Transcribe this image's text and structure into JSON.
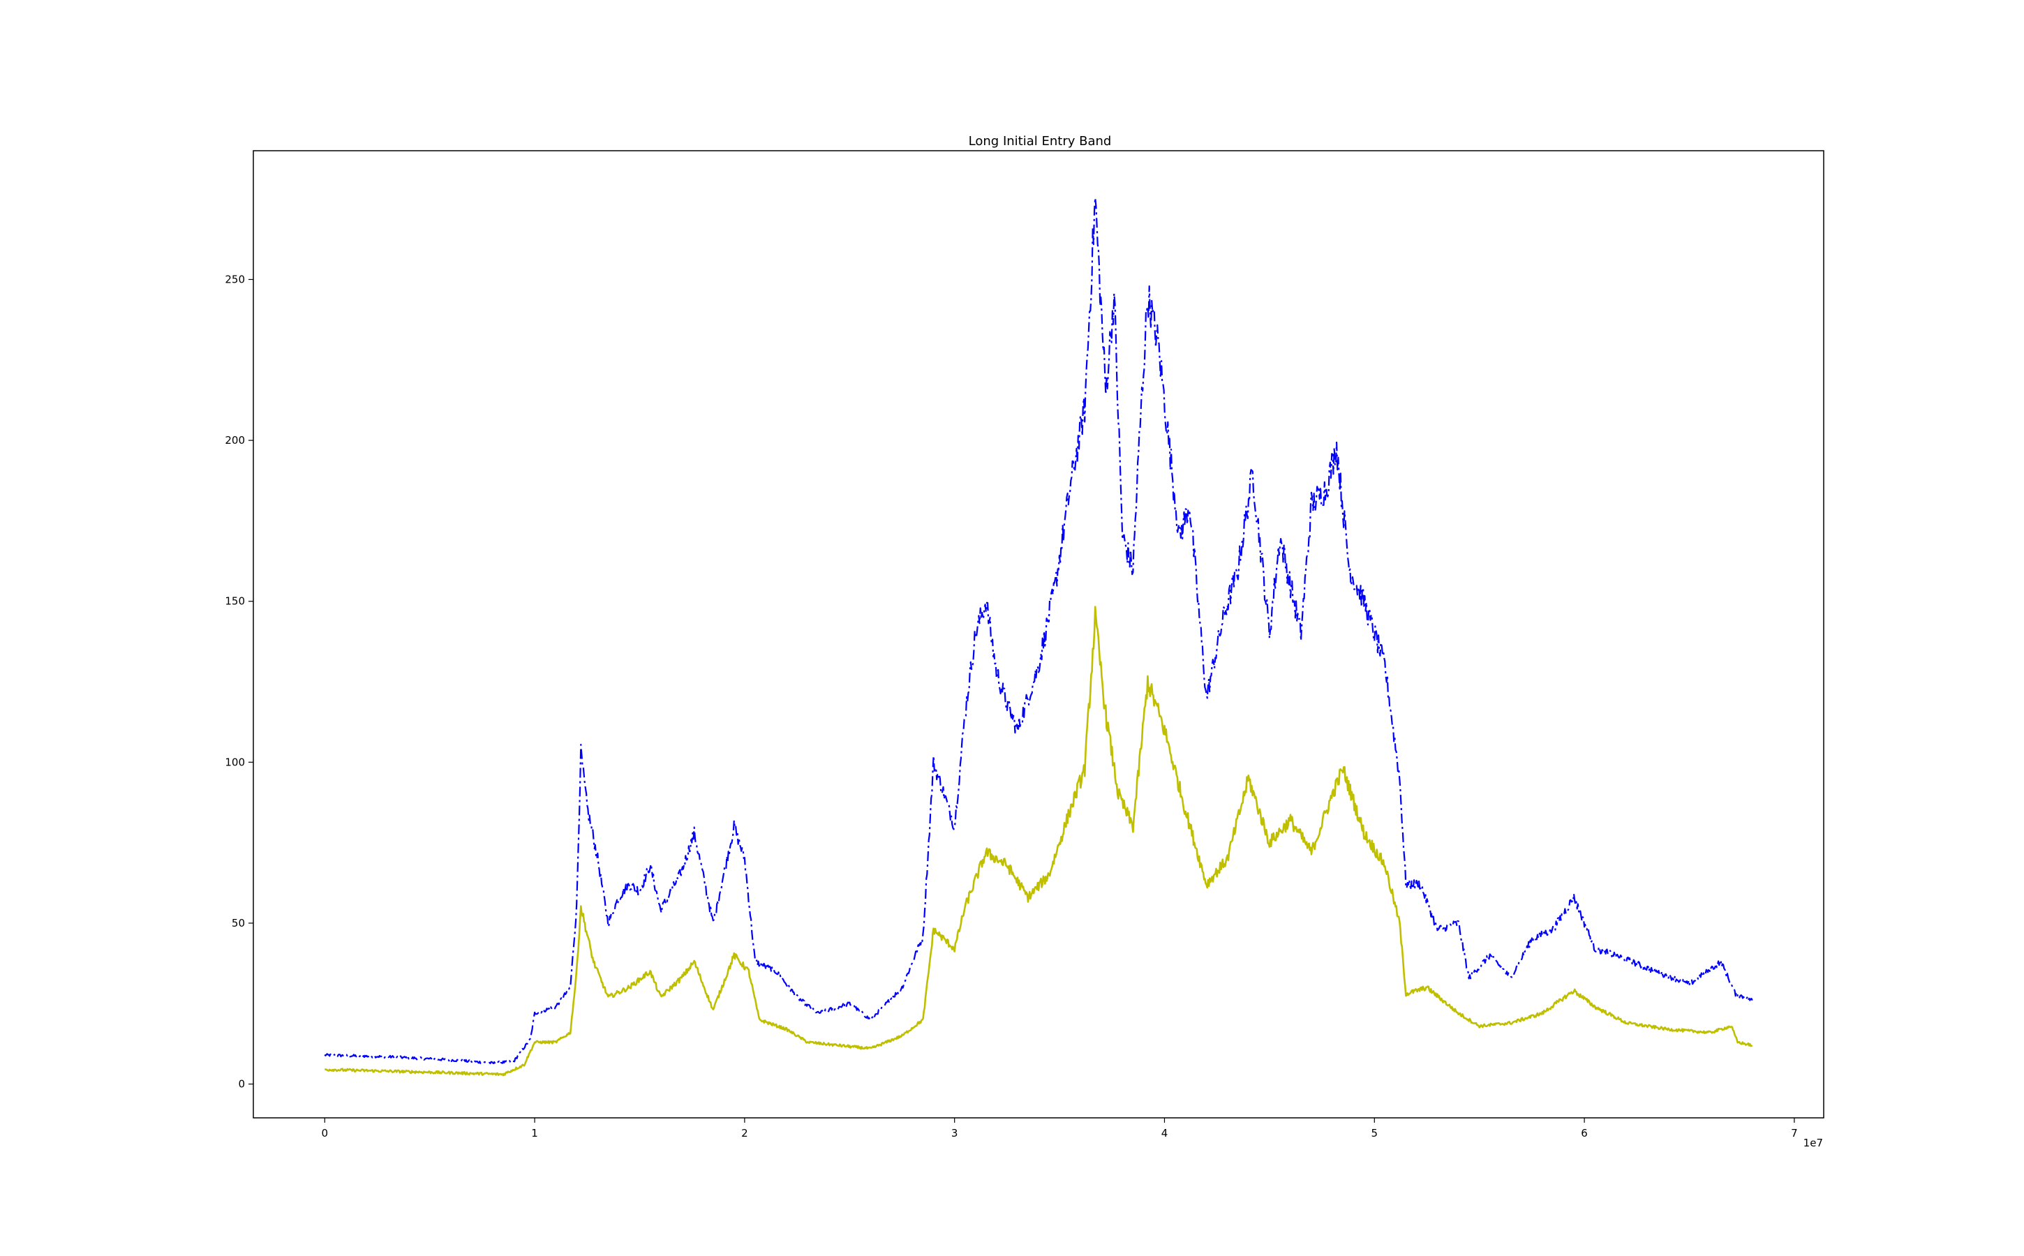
{
  "chart_data": {
    "type": "line",
    "title": "Long Initial Entry Band",
    "xlabel": "",
    "ylabel": "",
    "x_offset_label": "1e7",
    "xlim": [
      -0.34,
      7.14
    ],
    "ylim": [
      -10.5,
      290
    ],
    "xticks": [
      {
        "value": 0,
        "label": "0"
      },
      {
        "value": 1,
        "label": "1"
      },
      {
        "value": 2,
        "label": "2"
      },
      {
        "value": 3,
        "label": "3"
      },
      {
        "value": 4,
        "label": "4"
      },
      {
        "value": 5,
        "label": "5"
      },
      {
        "value": 6,
        "label": "6"
      },
      {
        "value": 7,
        "label": "7"
      }
    ],
    "yticks": [
      {
        "value": 0,
        "label": "0"
      },
      {
        "value": 50,
        "label": "50"
      },
      {
        "value": 100,
        "label": "100"
      },
      {
        "value": 150,
        "label": "150"
      },
      {
        "value": 200,
        "label": "200"
      },
      {
        "value": 250,
        "label": "250"
      }
    ],
    "grid": false,
    "legend": "none",
    "series": [
      {
        "color": "#0000ff",
        "linestyle": "dashdot",
        "points": [
          [
            0.0,
            9.0
          ],
          [
            0.3,
            8.5
          ],
          [
            0.6,
            7.5
          ],
          [
            0.8,
            6.5
          ],
          [
            0.9,
            7.0
          ],
          [
            0.98,
            14.0
          ],
          [
            1.0,
            22.0
          ],
          [
            1.1,
            24.0
          ],
          [
            1.17,
            30.0
          ],
          [
            1.2,
            55.0
          ],
          [
            1.22,
            103.0
          ],
          [
            1.25,
            86.0
          ],
          [
            1.3,
            70.0
          ],
          [
            1.35,
            50.0
          ],
          [
            1.4,
            58.0
          ],
          [
            1.45,
            62.0
          ],
          [
            1.5,
            60.0
          ],
          [
            1.55,
            68.0
          ],
          [
            1.6,
            54.0
          ],
          [
            1.7,
            66.0
          ],
          [
            1.76,
            78.0
          ],
          [
            1.85,
            50.0
          ],
          [
            1.9,
            65.0
          ],
          [
            1.95,
            80.0
          ],
          [
            2.0,
            70.0
          ],
          [
            2.05,
            38.0
          ],
          [
            2.15,
            35.0
          ],
          [
            2.25,
            27.0
          ],
          [
            2.35,
            22.0
          ],
          [
            2.5,
            25.0
          ],
          [
            2.6,
            20.0
          ],
          [
            2.75,
            30.0
          ],
          [
            2.85,
            46.0
          ],
          [
            2.9,
            100.0
          ],
          [
            2.95,
            90.0
          ],
          [
            3.0,
            80.0
          ],
          [
            3.05,
            115.0
          ],
          [
            3.1,
            140.0
          ],
          [
            3.15,
            150.0
          ],
          [
            3.2,
            128.0
          ],
          [
            3.25,
            118.0
          ],
          [
            3.3,
            110.0
          ],
          [
            3.4,
            130.0
          ],
          [
            3.48,
            155.0
          ],
          [
            3.55,
            185.0
          ],
          [
            3.62,
            210.0
          ],
          [
            3.67,
            275.0
          ],
          [
            3.72,
            215.0
          ],
          [
            3.76,
            245.0
          ],
          [
            3.8,
            170.0
          ],
          [
            3.85,
            160.0
          ],
          [
            3.88,
            200.0
          ],
          [
            3.92,
            245.0
          ],
          [
            3.97,
            230.0
          ],
          [
            4.02,
            200.0
          ],
          [
            4.07,
            170.0
          ],
          [
            4.12,
            180.0
          ],
          [
            4.2,
            120.0
          ],
          [
            4.28,
            145.0
          ],
          [
            4.35,
            160.0
          ],
          [
            4.42,
            190.0
          ],
          [
            4.5,
            140.0
          ],
          [
            4.55,
            170.0
          ],
          [
            4.6,
            155.0
          ],
          [
            4.65,
            140.0
          ],
          [
            4.7,
            180.0
          ],
          [
            4.77,
            185.0
          ],
          [
            4.82,
            198.0
          ],
          [
            4.88,
            160.0
          ],
          [
            4.95,
            150.0
          ],
          [
            5.05,
            130.0
          ],
          [
            5.12,
            95.0
          ],
          [
            5.15,
            62.0
          ],
          [
            5.22,
            62.0
          ],
          [
            5.3,
            48.0
          ],
          [
            5.4,
            50.0
          ],
          [
            5.45,
            33.0
          ],
          [
            5.55,
            40.0
          ],
          [
            5.65,
            33.0
          ],
          [
            5.75,
            45.0
          ],
          [
            5.85,
            48.0
          ],
          [
            5.95,
            58.0
          ],
          [
            6.05,
            42.0
          ],
          [
            6.15,
            40.0
          ],
          [
            6.3,
            36.0
          ],
          [
            6.5,
            31.0
          ],
          [
            6.65,
            38.0
          ],
          [
            6.72,
            28.0
          ],
          [
            6.8,
            26.0
          ]
        ]
      },
      {
        "color": "#bfbf00",
        "linestyle": "solid",
        "points": [
          [
            0.0,
            4.5
          ],
          [
            0.3,
            4.0
          ],
          [
            0.6,
            3.5
          ],
          [
            0.85,
            3.0
          ],
          [
            0.95,
            6.0
          ],
          [
            1.0,
            13.0
          ],
          [
            1.1,
            13.0
          ],
          [
            1.17,
            16.0
          ],
          [
            1.2,
            35.0
          ],
          [
            1.22,
            55.0
          ],
          [
            1.28,
            38.0
          ],
          [
            1.35,
            27.0
          ],
          [
            1.45,
            30.0
          ],
          [
            1.55,
            35.0
          ],
          [
            1.6,
            27.0
          ],
          [
            1.7,
            33.0
          ],
          [
            1.76,
            38.0
          ],
          [
            1.85,
            23.0
          ],
          [
            1.95,
            40.0
          ],
          [
            2.02,
            35.0
          ],
          [
            2.07,
            20.0
          ],
          [
            2.2,
            17.0
          ],
          [
            2.3,
            13.0
          ],
          [
            2.45,
            12.0
          ],
          [
            2.6,
            11.0
          ],
          [
            2.75,
            15.0
          ],
          [
            2.85,
            20.0
          ],
          [
            2.9,
            48.0
          ],
          [
            3.0,
            42.0
          ],
          [
            3.05,
            55.0
          ],
          [
            3.15,
            72.0
          ],
          [
            3.25,
            68.0
          ],
          [
            3.35,
            58.0
          ],
          [
            3.45,
            65.0
          ],
          [
            3.55,
            85.0
          ],
          [
            3.62,
            98.0
          ],
          [
            3.67,
            145.0
          ],
          [
            3.72,
            115.0
          ],
          [
            3.78,
            90.0
          ],
          [
            3.85,
            80.0
          ],
          [
            3.92,
            125.0
          ],
          [
            4.0,
            110.0
          ],
          [
            4.1,
            85.0
          ],
          [
            4.2,
            62.0
          ],
          [
            4.3,
            70.0
          ],
          [
            4.4,
            95.0
          ],
          [
            4.5,
            75.0
          ],
          [
            4.6,
            82.0
          ],
          [
            4.7,
            72.0
          ],
          [
            4.8,
            90.0
          ],
          [
            4.85,
            98.0
          ],
          [
            4.95,
            78.0
          ],
          [
            5.05,
            68.0
          ],
          [
            5.12,
            50.0
          ],
          [
            5.15,
            28.0
          ],
          [
            5.25,
            30.0
          ],
          [
            5.4,
            22.0
          ],
          [
            5.5,
            18.0
          ],
          [
            5.65,
            19.0
          ],
          [
            5.8,
            22.0
          ],
          [
            5.95,
            29.0
          ],
          [
            6.05,
            24.0
          ],
          [
            6.2,
            19.0
          ],
          [
            6.4,
            17.0
          ],
          [
            6.6,
            16.0
          ],
          [
            6.7,
            18.0
          ],
          [
            6.73,
            13.0
          ],
          [
            6.8,
            12.0
          ]
        ]
      }
    ]
  }
}
